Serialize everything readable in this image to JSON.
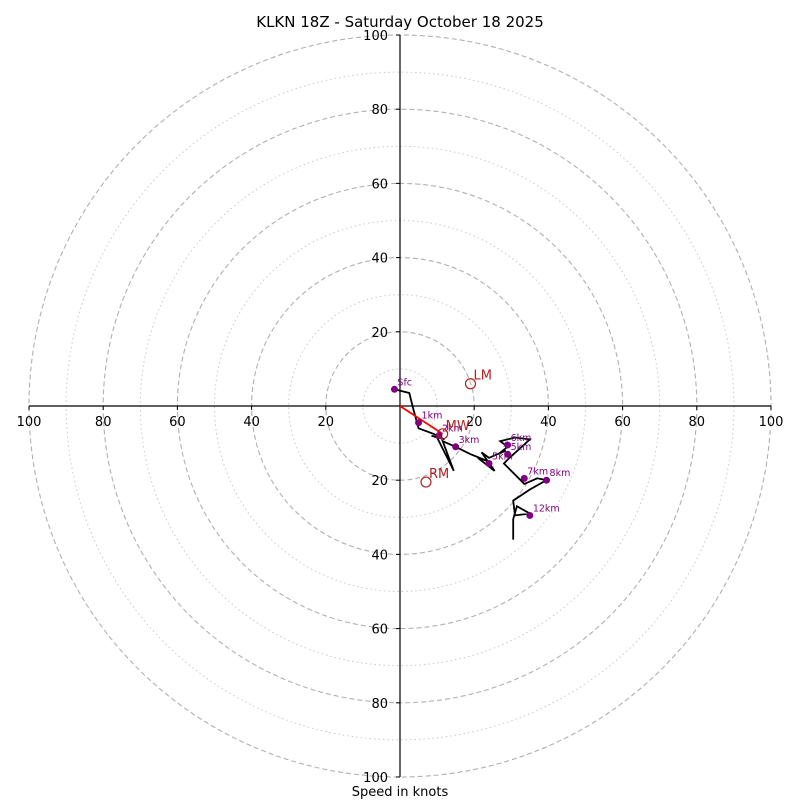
{
  "chart_data": {
    "type": "scatter",
    "subtype": "hodograph",
    "title": "KLKN 18Z - Saturday October 18 2025",
    "xlabel": "Speed in knots",
    "ylabel": "",
    "xlim": [
      -100,
      100
    ],
    "ylim": [
      -100,
      100
    ],
    "grid": "concentric rings every 10 kt (dashed at 20 kt, dotted at odd tens)",
    "ring_major": [
      20,
      40,
      60,
      80,
      100
    ],
    "ring_minor": [
      10,
      30,
      50,
      70,
      90
    ],
    "x_tick_values": [
      -100,
      -80,
      -60,
      -40,
      -20,
      20,
      40,
      60,
      80,
      100
    ],
    "x_tick_labels": [
      "100",
      "80",
      "60",
      "40",
      "20",
      "20",
      "40",
      "60",
      "80",
      "100"
    ],
    "y_tick_values": [
      100,
      80,
      60,
      40,
      20,
      -20,
      -40,
      -60,
      -80,
      -100
    ],
    "y_tick_labels": [
      "100",
      "80",
      "60",
      "40",
      "20",
      "20",
      "40",
      "60",
      "80",
      "100"
    ],
    "colors": {
      "trace": "#000000",
      "height_points": "#800080",
      "storm_motion": "#b22222",
      "shear_vector": "#ff0000",
      "grid": "#b0b0b0",
      "axes": "#000000"
    },
    "hodograph_trace": [
      [
        -1.5,
        4.5
      ],
      [
        2.5,
        3.5
      ],
      [
        3.5,
        -0.5
      ],
      [
        5,
        -6
      ],
      [
        9,
        -7.5
      ],
      [
        12,
        -9
      ],
      [
        8.5,
        -8
      ],
      [
        10,
        -8.5
      ],
      [
        14.5,
        -17.5
      ],
      [
        11.5,
        -9.5
      ],
      [
        15,
        -11
      ],
      [
        19,
        -13
      ],
      [
        24,
        -15
      ],
      [
        21,
        -14
      ],
      [
        25.5,
        -17.5
      ],
      [
        22,
        -12.5
      ],
      [
        24,
        -14
      ],
      [
        28.5,
        -12
      ],
      [
        26.5,
        -13
      ],
      [
        29,
        -11
      ],
      [
        27,
        -9.5
      ],
      [
        31,
        -8.5
      ],
      [
        35,
        -9
      ],
      [
        29.5,
        -14
      ],
      [
        28,
        -15.5
      ],
      [
        33.5,
        -21
      ],
      [
        37,
        -19.5
      ],
      [
        39.5,
        -20
      ],
      [
        35,
        -22.5
      ],
      [
        30.5,
        -25.5
      ],
      [
        31,
        -29.5
      ],
      [
        35,
        -29
      ],
      [
        31.5,
        -27
      ],
      [
        30.5,
        -30.5
      ],
      [
        30.5,
        -36
      ]
    ],
    "height_points": [
      {
        "label": "Sfc",
        "u": -1.5,
        "v": 4.5
      },
      {
        "label": "1km",
        "u": 5,
        "v": -4.5
      },
      {
        "label": "2km",
        "u": 10.5,
        "v": -8
      },
      {
        "label": "3km",
        "u": 15,
        "v": -11
      },
      {
        "label": "5km",
        "u": 24,
        "v": -15.5
      },
      {
        "label": "6km",
        "u": 29,
        "v": -10.5
      },
      {
        "label": "5km",
        "u": 29,
        "v": -13
      },
      {
        "label": "7km",
        "u": 33.5,
        "v": -19.5
      },
      {
        "label": "8km",
        "u": 39.5,
        "v": -20
      },
      {
        "label": "12km",
        "u": 35,
        "v": -29.5
      }
    ],
    "storm_motions": [
      {
        "label": "LM",
        "u": 19,
        "v": 6
      },
      {
        "label": "MW",
        "u": 11.5,
        "v": -7.5
      },
      {
        "label": "RM",
        "u": 7,
        "v": -20.5
      }
    ],
    "shear_vector": {
      "from": [
        0,
        0
      ],
      "to": [
        11.5,
        -7.5
      ]
    }
  }
}
